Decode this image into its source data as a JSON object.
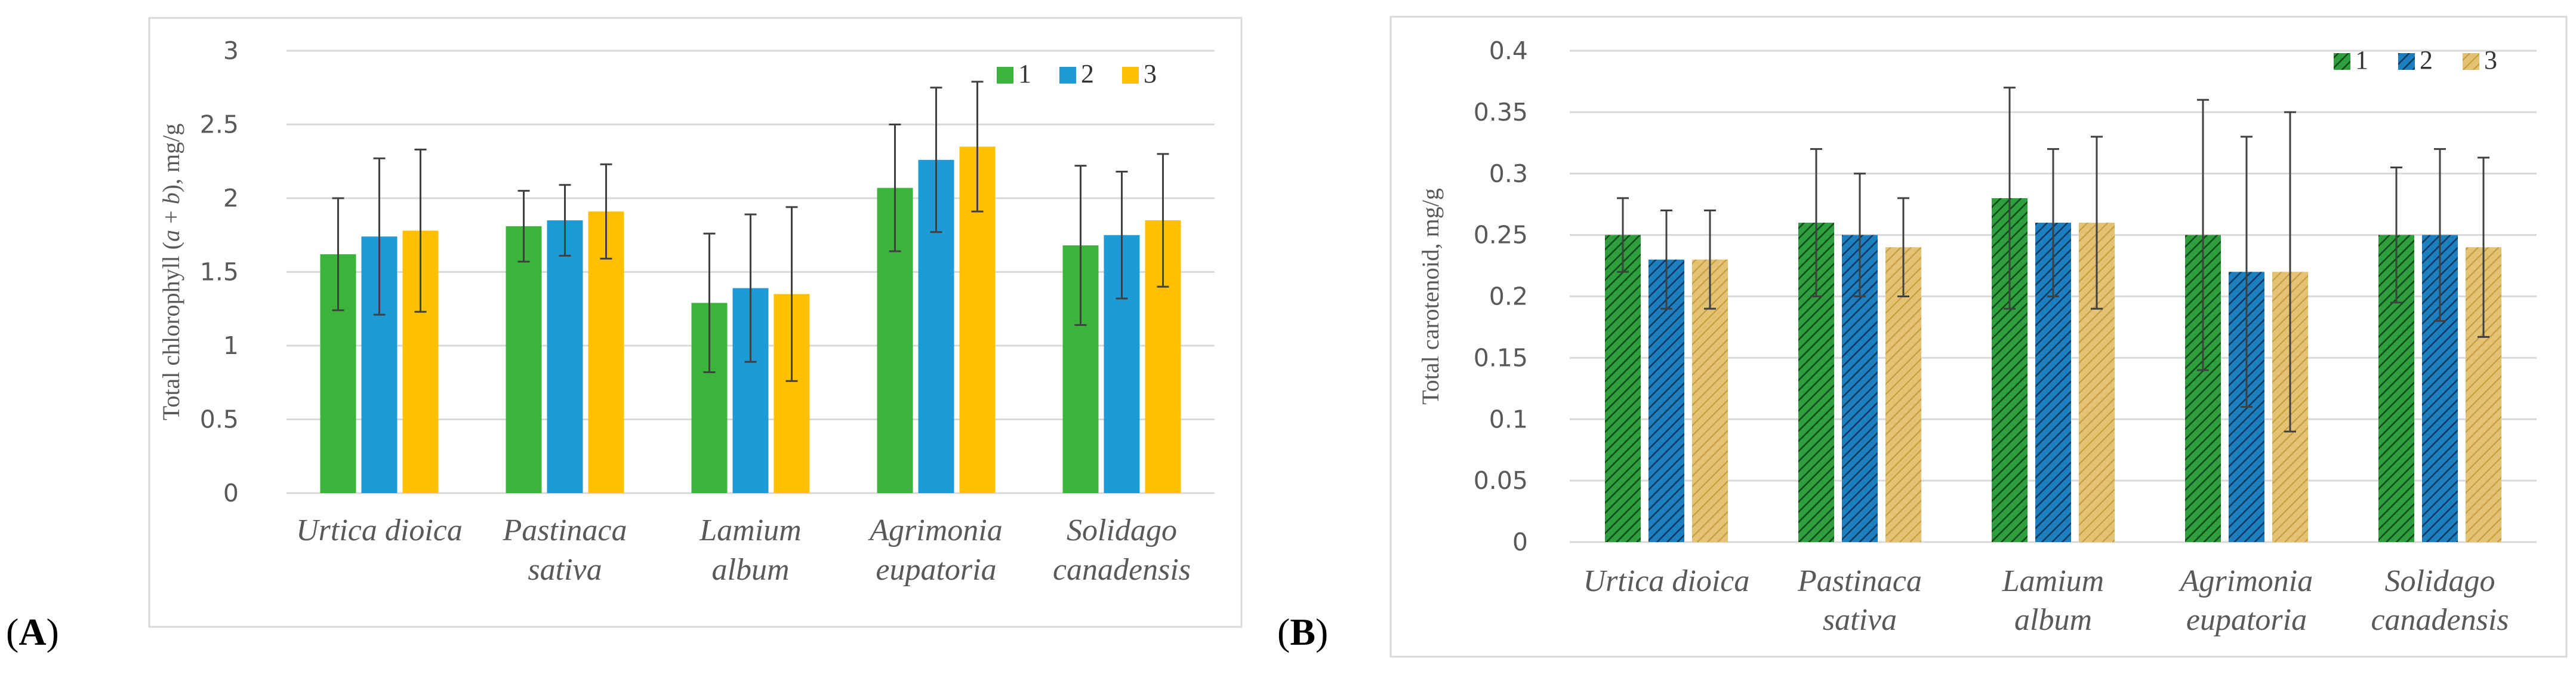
{
  "chart_data": [
    {
      "type": "bar",
      "panel_label": "A",
      "ylabel_pre": "Total chlorophyll (",
      "ylabel_italic": "a",
      "ylabel_mid": " + ",
      "ylabel_italic2": "b",
      "ylabel_post": "), mg/g",
      "categories": [
        [
          "Urtica dioica"
        ],
        [
          "Pastinaca",
          "sativa"
        ],
        [
          "Lamium",
          "album"
        ],
        [
          "Agrimonia",
          "eupatoria"
        ],
        [
          "Solidago",
          "canadensis"
        ]
      ],
      "ylim": [
        0,
        3
      ],
      "yticks": [
        "0",
        "0.5",
        "1",
        "1.5",
        "2",
        "2.5",
        "3"
      ],
      "tick_step": 0.5,
      "grid": true,
      "legend_position": "top-right",
      "series": [
        {
          "name": "1",
          "color": "#3cb43c",
          "values": [
            1.62,
            1.81,
            1.29,
            2.07,
            1.68
          ],
          "errors": [
            0.38,
            0.24,
            0.47,
            0.43,
            0.54
          ]
        },
        {
          "name": "2",
          "color": "#1e9ad6",
          "values": [
            1.74,
            1.85,
            1.39,
            2.26,
            1.75
          ],
          "errors": [
            0.53,
            0.24,
            0.5,
            0.49,
            0.43
          ]
        },
        {
          "name": "3",
          "color": "#ffc000",
          "values": [
            1.78,
            1.91,
            1.35,
            2.35,
            1.85
          ],
          "errors": [
            0.55,
            0.32,
            0.59,
            0.44,
            0.45
          ]
        }
      ]
    },
    {
      "type": "bar",
      "panel_label": "B",
      "ylabel_pre": "Total carotenoid, mg/g",
      "categories": [
        [
          "Urtica dioica"
        ],
        [
          "Pastinaca",
          "sativa"
        ],
        [
          "Lamium",
          "album"
        ],
        [
          "Agrimonia",
          "eupatoria"
        ],
        [
          "Solidago",
          "canadensis"
        ]
      ],
      "ylim": [
        0,
        0.4
      ],
      "yticks": [
        "0",
        "0.05",
        "0.1",
        "0.15",
        "0.2",
        "0.25",
        "0.3",
        "0.35",
        "0.4"
      ],
      "tick_step": 0.05,
      "grid": true,
      "legend_position": "top-right",
      "series": [
        {
          "name": "1",
          "color": "#2e9e3e",
          "pattern": "hatch",
          "values": [
            0.25,
            0.26,
            0.28,
            0.25,
            0.25
          ],
          "errors": [
            0.03,
            0.06,
            0.09,
            0.11,
            0.055
          ]
        },
        {
          "name": "2",
          "color": "#1d7fc0",
          "pattern": "hatch",
          "values": [
            0.23,
            0.25,
            0.26,
            0.22,
            0.25
          ],
          "errors": [
            0.04,
            0.05,
            0.06,
            0.11,
            0.07
          ]
        },
        {
          "name": "3",
          "color": "#d8b45a",
          "pattern": "hatch",
          "values": [
            0.23,
            0.24,
            0.26,
            0.22,
            0.24
          ],
          "errors": [
            0.04,
            0.04,
            0.07,
            0.13,
            0.073
          ]
        }
      ]
    }
  ]
}
